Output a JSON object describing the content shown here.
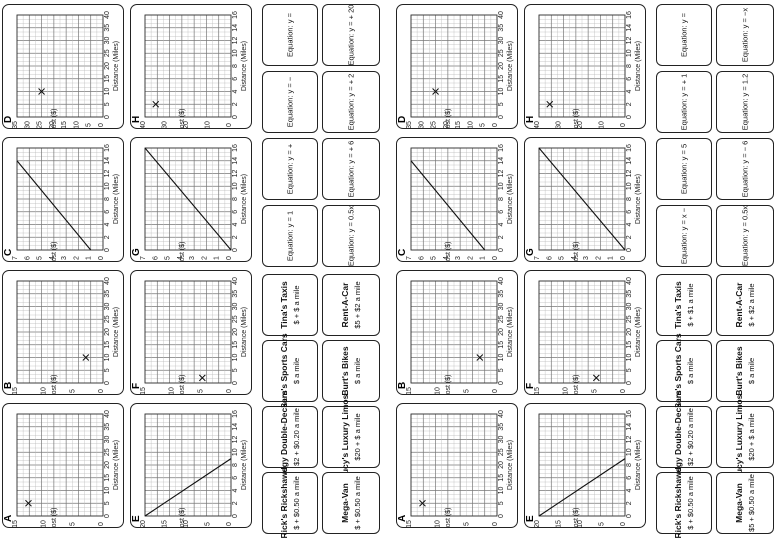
{
  "sheets": [
    {
      "id": "left",
      "graphs": [
        {
          "letter": "A",
          "col": 0,
          "row": 3,
          "x_max": 40,
          "y_max": 15,
          "x_ticks": [
            "0",
            "5",
            "10",
            "15",
            "20",
            "25",
            "30",
            "35",
            "40"
          ],
          "y_ticks": [
            "0",
            "5",
            "10",
            "15"
          ],
          "xlabel": "Distance (Miles)",
          "ylabel": "Cost ($)",
          "cross": [
            5,
            13
          ],
          "line": null
        },
        {
          "letter": "B",
          "col": 0,
          "row": 2,
          "x_max": 40,
          "y_max": 15,
          "x_ticks": [
            "0",
            "5",
            "10",
            "15",
            "20",
            "25",
            "30",
            "35",
            "40"
          ],
          "y_ticks": [
            "0",
            "5",
            "10",
            "15"
          ],
          "xlabel": "Distance (Miles)",
          "ylabel": "Cost ($)",
          "cross": [
            10,
            3
          ],
          "line": null
        },
        {
          "letter": "C",
          "col": 0,
          "row": 1,
          "x_max": 16,
          "y_max": 7,
          "x_ticks": [
            "0",
            "2",
            "4",
            "6",
            "8",
            "10",
            "12",
            "14",
            "16"
          ],
          "y_ticks": [
            "0",
            "1",
            "2",
            "3",
            "4",
            "5",
            "6",
            "7"
          ],
          "xlabel": "Distance (Miles)",
          "ylabel": "Cost ($)",
          "cross": null,
          "line": [
            [
              0,
              1
            ],
            [
              14,
              7
            ]
          ]
        },
        {
          "letter": "D",
          "col": 0,
          "row": 0,
          "x_max": 40,
          "y_max": 35,
          "x_ticks": [
            "0",
            "5",
            "10",
            "15",
            "20",
            "25",
            "30",
            "35",
            "40"
          ],
          "y_ticks": [
            "0",
            "5",
            "10",
            "15",
            "20",
            "25",
            "30",
            "35"
          ],
          "xlabel": "Distance (Miles)",
          "ylabel": "Cost ($)",
          "cross": [
            10,
            25
          ],
          "line": null
        },
        {
          "letter": "E",
          "col": 1,
          "row": 3,
          "x_max": 16,
          "y_max": 20,
          "x_ticks": [
            "0",
            "2",
            "4",
            "6",
            "8",
            "10",
            "12",
            "14",
            "16"
          ],
          "y_ticks": [
            "0",
            "5",
            "10",
            "15",
            "20"
          ],
          "xlabel": "Distance (Miles)",
          "ylabel": "Cost ($)",
          "cross": null,
          "line": [
            [
              0,
              20
            ],
            [
              9,
              0
            ]
          ]
        },
        {
          "letter": "F",
          "col": 1,
          "row": 2,
          "x_max": 40,
          "y_max": 15,
          "x_ticks": [
            "0",
            "5",
            "10",
            "15",
            "20",
            "25",
            "30",
            "35",
            "40"
          ],
          "y_ticks": [
            "0",
            "5",
            "10",
            "15"
          ],
          "xlabel": "Distance (Miles)",
          "ylabel": "Cost ($)",
          "cross": [
            2,
            5
          ],
          "line": null
        },
        {
          "letter": "G",
          "col": 1,
          "row": 1,
          "x_max": 16,
          "y_max": 7,
          "x_ticks": [
            "0",
            "2",
            "4",
            "6",
            "8",
            "10",
            "12",
            "14",
            "16"
          ],
          "y_ticks": [
            "0",
            "1",
            "2",
            "3",
            "4",
            "5",
            "6",
            "7"
          ],
          "xlabel": "Distance (Miles)",
          "ylabel": "Cost ($)",
          "cross": null,
          "line": [
            [
              0,
              0
            ],
            [
              16,
              7
            ]
          ]
        },
        {
          "letter": "H",
          "col": 1,
          "row": 0,
          "x_max": 16,
          "y_max": 40,
          "x_ticks": [
            "0",
            "2",
            "4",
            "6",
            "8",
            "10",
            "12",
            "14",
            "16"
          ],
          "y_ticks": [
            "0",
            "10",
            "20",
            "30",
            "40"
          ],
          "xlabel": "Distance (Miles)",
          "ylabel": "Cost ($)",
          "cross": [
            2,
            35
          ],
          "line": null
        }
      ],
      "companies": [
        {
          "name": "Rick's Rickshaws",
          "rate": "$ + $0.50 a mile"
        },
        {
          "name": "Dodgy Double-Deckers",
          "rate": "$2 + $0.20 a mile"
        },
        {
          "name": "Sam's Sports Cars",
          "rate": "$ a mile"
        },
        {
          "name": "Tina's Taxis",
          "rate": "$ + $ a mile"
        },
        {
          "name": "Mega-Van",
          "rate": "$ + $0.50 a mile"
        },
        {
          "name": "Lucy's Luxury Limos",
          "rate": "$20 + $ a mile"
        },
        {
          "name": "Burt's Bikes",
          "rate": "$ a mile"
        },
        {
          "name": "Rent-A-Car",
          "rate": "$5 + $2 a mile"
        }
      ],
      "equations": [
        "Equation: y =",
        "Equation: y = + 20",
        "Equation: y = −",
        "Equation: y = + 2",
        "Equation: y = + ",
        "Equation: y = + 6",
        "Equation: y = 1",
        "Equation: y = 0.5x"
      ]
    },
    {
      "id": "right",
      "graphs": [
        {
          "letter": "A",
          "col": 0,
          "row": 3,
          "x_max": 40,
          "y_max": 15,
          "x_ticks": [
            "0",
            "5",
            "10",
            "15",
            "20",
            "25",
            "30",
            "35",
            "40"
          ],
          "y_ticks": [
            "0",
            "5",
            "10",
            "15"
          ],
          "xlabel": "Distance (Miles)",
          "ylabel": "Cost ($)",
          "cross": [
            5,
            13
          ],
          "line": null
        },
        {
          "letter": "B",
          "col": 0,
          "row": 2,
          "x_max": 40,
          "y_max": 15,
          "x_ticks": [
            "0",
            "5",
            "10",
            "15",
            "20",
            "25",
            "30",
            "35",
            "40"
          ],
          "y_ticks": [
            "0",
            "5",
            "10",
            "15"
          ],
          "xlabel": "Distance (Miles)",
          "ylabel": "Cost ($)",
          "cross": [
            10,
            3
          ],
          "line": null
        },
        {
          "letter": "C",
          "col": 0,
          "row": 1,
          "x_max": 16,
          "y_max": 7,
          "x_ticks": [
            "0",
            "2",
            "4",
            "6",
            "8",
            "10",
            "12",
            "14",
            "16"
          ],
          "y_ticks": [
            "0",
            "1",
            "2",
            "3",
            "4",
            "5",
            "6",
            "7"
          ],
          "xlabel": "Distance (Miles)",
          "ylabel": "Cost ($)",
          "cross": null,
          "line": [
            [
              0,
              1
            ],
            [
              14,
              7
            ]
          ]
        },
        {
          "letter": "D",
          "col": 0,
          "row": 0,
          "x_max": 40,
          "y_max": 35,
          "x_ticks": [
            "0",
            "5",
            "10",
            "15",
            "20",
            "25",
            "30",
            "35",
            "40"
          ],
          "y_ticks": [
            "0",
            "5",
            "10",
            "15",
            "20",
            "25",
            "30",
            "35"
          ],
          "xlabel": "Distance (Miles)",
          "ylabel": "Cost ($)",
          "cross": [
            10,
            25
          ],
          "line": null
        },
        {
          "letter": "E",
          "col": 1,
          "row": 3,
          "x_max": 16,
          "y_max": 20,
          "x_ticks": [
            "0",
            "2",
            "4",
            "6",
            "8",
            "10",
            "12",
            "14",
            "16"
          ],
          "y_ticks": [
            "0",
            "5",
            "10",
            "15",
            "20"
          ],
          "xlabel": "Distance (Miles)",
          "ylabel": "Cost ($)",
          "cross": null,
          "line": [
            [
              0,
              20
            ],
            [
              9,
              0
            ]
          ]
        },
        {
          "letter": "F",
          "col": 1,
          "row": 2,
          "x_max": 40,
          "y_max": 15,
          "x_ticks": [
            "0",
            "5",
            "10",
            "15",
            "20",
            "25",
            "30",
            "35",
            "40"
          ],
          "y_ticks": [
            "0",
            "5",
            "10",
            "15"
          ],
          "xlabel": "Distance (Miles)",
          "ylabel": "Cost ($)",
          "cross": [
            2,
            5
          ],
          "line": null
        },
        {
          "letter": "G",
          "col": 1,
          "row": 1,
          "x_max": 16,
          "y_max": 7,
          "x_ticks": [
            "0",
            "2",
            "4",
            "6",
            "8",
            "10",
            "12",
            "14",
            "16"
          ],
          "y_ticks": [
            "0",
            "1",
            "2",
            "3",
            "4",
            "5",
            "6",
            "7"
          ],
          "xlabel": "Distance (Miles)",
          "ylabel": "Cost ($)",
          "cross": null,
          "line": [
            [
              0,
              0
            ],
            [
              16,
              7
            ]
          ]
        },
        {
          "letter": "H",
          "col": 1,
          "row": 0,
          "x_max": 16,
          "y_max": 40,
          "x_ticks": [
            "0",
            "2",
            "4",
            "6",
            "8",
            "10",
            "12",
            "14",
            "16"
          ],
          "y_ticks": [
            "0",
            "10",
            "20",
            "30",
            "40"
          ],
          "xlabel": "Distance (Miles)",
          "ylabel": "Cost ($)",
          "cross": [
            2,
            35
          ],
          "line": null
        }
      ],
      "companies": [
        {
          "name": "Rick's Rickshaws",
          "rate": "$ + $0.50 a mile"
        },
        {
          "name": "Dodgy Double-Deckers",
          "rate": "$2 + $0.20 a mile"
        },
        {
          "name": "Sam's Sports Cars",
          "rate": "$ a mile"
        },
        {
          "name": "Tina's Taxis",
          "rate": "$ + $1 a mile"
        },
        {
          "name": "Mega-Van",
          "rate": "$5 + $0.50 a mile"
        },
        {
          "name": "Lucy's Luxury Limos",
          "rate": "$20 + $ a mile"
        },
        {
          "name": "Burt's Bikes",
          "rate": "$ a mile"
        },
        {
          "name": "Rent-A-Car",
          "rate": "$ + $2 a mile"
        }
      ],
      "equations": [
        "Equation: y =",
        "Equation: y = −x",
        "Equation: y = + 1",
        "Equation: y = 1.2",
        "Equation: y = 5",
        "Equation: y = − 6",
        "Equation: y = x −",
        "Equation: y = 0.5x"
      ]
    }
  ]
}
